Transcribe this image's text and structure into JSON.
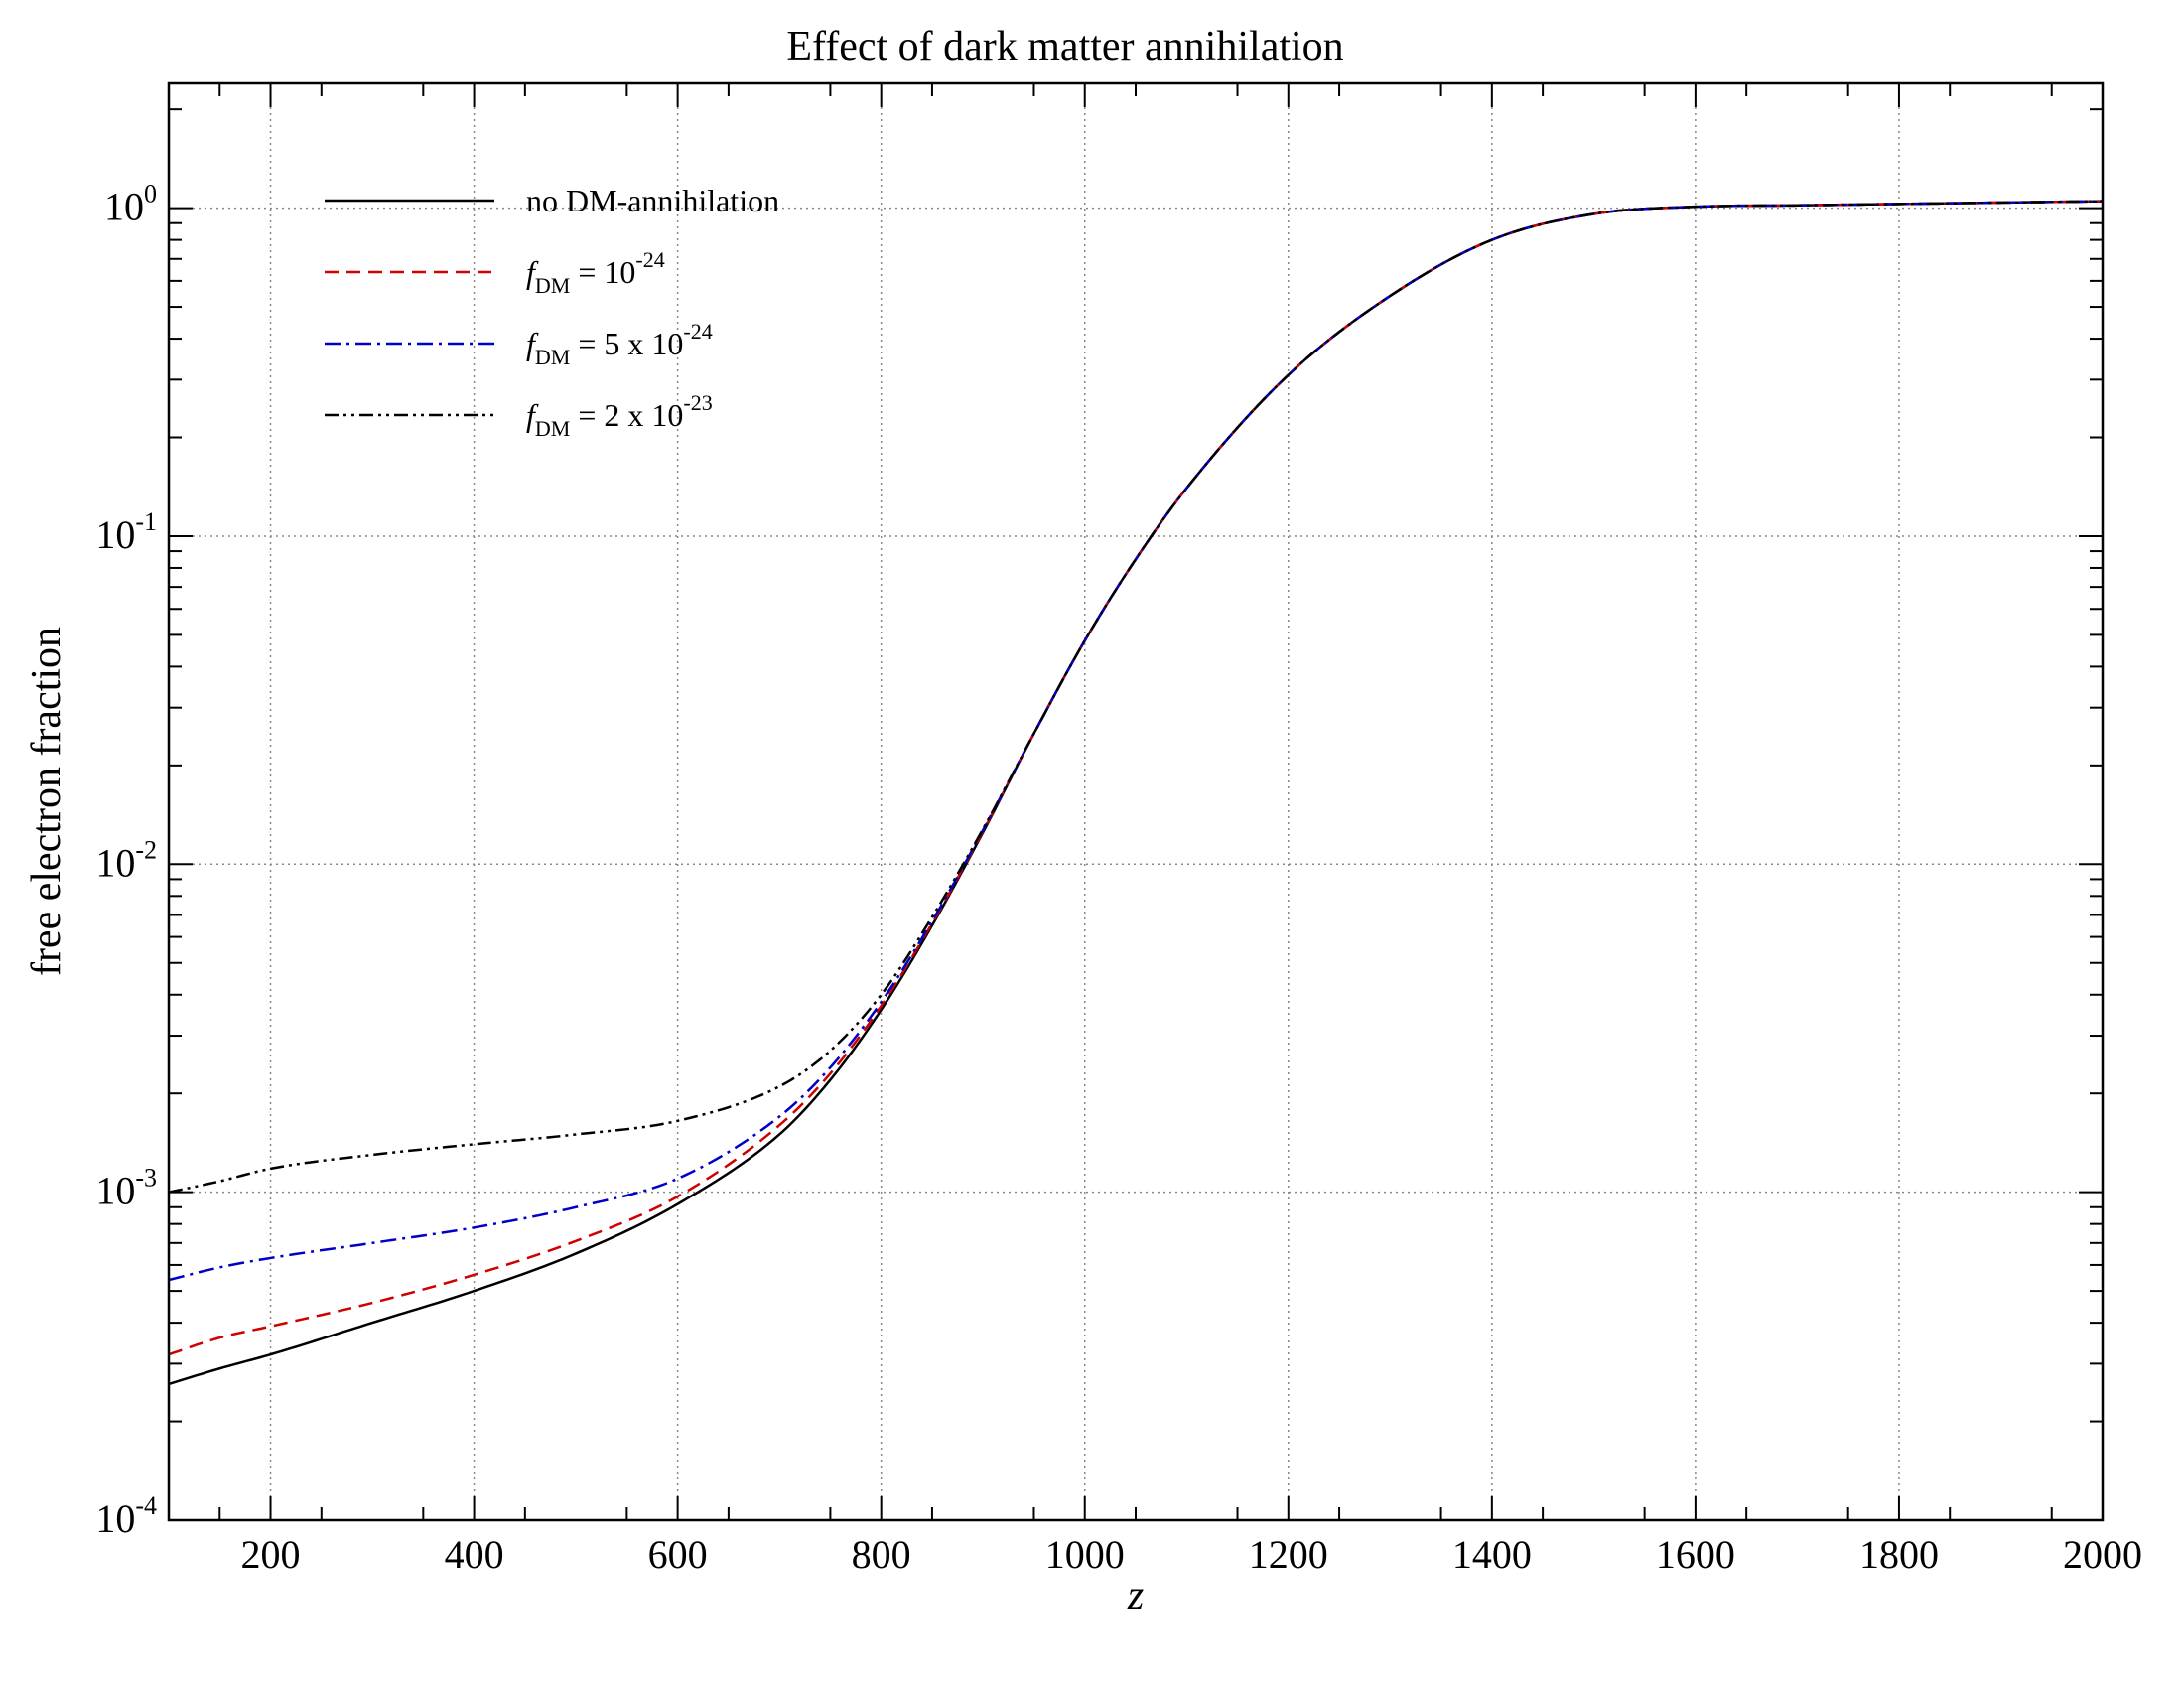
{
  "chart_data": {
    "type": "line",
    "title": "Effect of dark matter annihilation",
    "xlabel": "z",
    "ylabel": "free electron fraction",
    "xlim": [
      100,
      2000
    ],
    "ylim": [
      0.0001,
      2.4
    ],
    "y_scale": "log",
    "grid": true,
    "legend_position": "top-left",
    "x_ticks": [
      {
        "value": 200,
        "label": "200"
      },
      {
        "value": 400,
        "label": "400"
      },
      {
        "value": 600,
        "label": "600"
      },
      {
        "value": 800,
        "label": "800"
      },
      {
        "value": 1000,
        "label": "1000"
      },
      {
        "value": 1200,
        "label": "1200"
      },
      {
        "value": 1400,
        "label": "1400"
      },
      {
        "value": 1600,
        "label": "1600"
      },
      {
        "value": 1800,
        "label": "1800"
      },
      {
        "value": 2000,
        "label": "2000"
      }
    ],
    "y_ticks": [
      {
        "value": 0.0001,
        "base": "10",
        "exp": "-4"
      },
      {
        "value": 0.001,
        "base": "10",
        "exp": "-3"
      },
      {
        "value": 0.01,
        "base": "10",
        "exp": "-2"
      },
      {
        "value": 0.1,
        "base": "10",
        "exp": "-1"
      },
      {
        "value": 1,
        "base": "10",
        "exp": "0"
      }
    ],
    "x": [
      100,
      150,
      200,
      300,
      400,
      500,
      600,
      700,
      750,
      800,
      850,
      900,
      950,
      1000,
      1050,
      1100,
      1200,
      1300,
      1400,
      1500,
      1600,
      1700,
      1800,
      1900,
      2000
    ],
    "series": [
      {
        "name": "no DM-annihilation",
        "legend_parts": {
          "text": "no DM-annihilation"
        },
        "color": "#000000",
        "dash": "solid",
        "values": [
          0.00026,
          0.00029,
          0.00032,
          0.0004,
          0.0005,
          0.00065,
          0.00092,
          0.0015,
          0.0022,
          0.0036,
          0.0065,
          0.0125,
          0.025,
          0.048,
          0.085,
          0.14,
          0.31,
          0.54,
          0.8,
          0.96,
          1.01,
          1.02,
          1.03,
          1.04,
          1.05
        ]
      },
      {
        "name": "f_DM = 10^-24",
        "legend_parts": {
          "italic": "f",
          "sub": "DM",
          "text": " = 10",
          "sup": "-24"
        },
        "color": "#d00000",
        "dash": "14,8",
        "values": [
          0.00032,
          0.00036,
          0.00039,
          0.00046,
          0.00056,
          0.00071,
          0.00097,
          0.0016,
          0.0023,
          0.0037,
          0.0066,
          0.0126,
          0.025,
          0.048,
          0.085,
          0.14,
          0.31,
          0.54,
          0.8,
          0.96,
          1.01,
          1.02,
          1.03,
          1.04,
          1.05
        ]
      },
      {
        "name": "f_DM = 5 x 10^-24",
        "legend_parts": {
          "italic": "f",
          "sub": "DM",
          "text": " = 5 x 10",
          "sup": "-24"
        },
        "color": "#0000c8",
        "dash": "16,6,3,6",
        "values": [
          0.00054,
          0.00059,
          0.00063,
          0.0007,
          0.00078,
          0.0009,
          0.0011,
          0.0017,
          0.0024,
          0.0038,
          0.0067,
          0.0127,
          0.025,
          0.048,
          0.085,
          0.14,
          0.31,
          0.54,
          0.8,
          0.96,
          1.01,
          1.02,
          1.03,
          1.04,
          1.05
        ]
      },
      {
        "name": "f_DM = 2 x 10^-23",
        "legend_parts": {
          "italic": "f",
          "sub": "DM",
          "text": " = 2 x 10",
          "sup": "-23"
        },
        "color": "#000000",
        "dash": "14,5,3,5,3,5",
        "values": [
          0.001,
          0.00108,
          0.00118,
          0.0013,
          0.0014,
          0.0015,
          0.00165,
          0.0021,
          0.0027,
          0.004,
          0.0069,
          0.0128,
          0.025,
          0.048,
          0.085,
          0.14,
          0.31,
          0.54,
          0.8,
          0.96,
          1.01,
          1.02,
          1.03,
          1.04,
          1.05
        ]
      }
    ]
  }
}
